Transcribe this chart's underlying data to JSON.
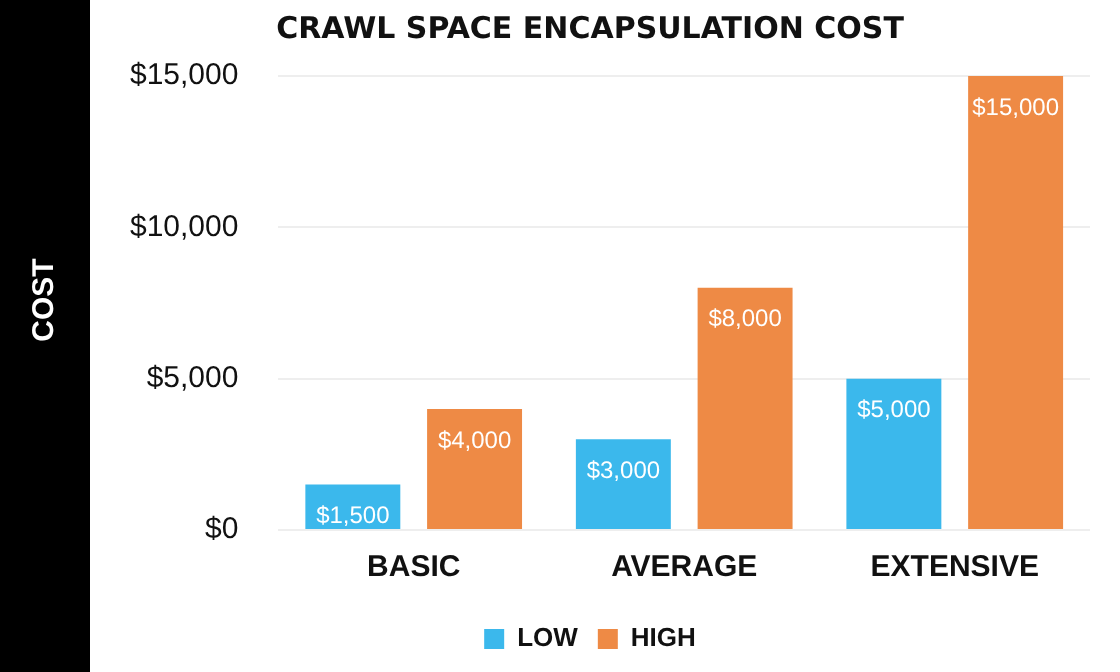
{
  "chart_data": {
    "type": "bar",
    "title": "CRAWL SPACE ENCAPSULATION COST",
    "ylabel": "COST",
    "categories": [
      "BASIC",
      "AVERAGE",
      "EXTENSIVE"
    ],
    "series": [
      {
        "name": "LOW",
        "color": "#3bb8ec",
        "values": [
          1500,
          3000,
          5000
        ],
        "value_labels": [
          "$1,500",
          "$3,000",
          "$5,000"
        ]
      },
      {
        "name": "HIGH",
        "color": "#ee8a45",
        "values": [
          4000,
          8000,
          15000
        ],
        "value_labels": [
          "$4,000",
          "$8,000",
          "$15,000"
        ]
      }
    ],
    "ylim": [
      0,
      15000
    ],
    "yticks": [
      {
        "value": 0,
        "label": "$0"
      },
      {
        "value": 5000,
        "label": "$5,000"
      },
      {
        "value": 10000,
        "label": "$10,000"
      },
      {
        "value": 15000,
        "label": "$15,000"
      }
    ],
    "grid": "y",
    "legend": "bottom"
  }
}
